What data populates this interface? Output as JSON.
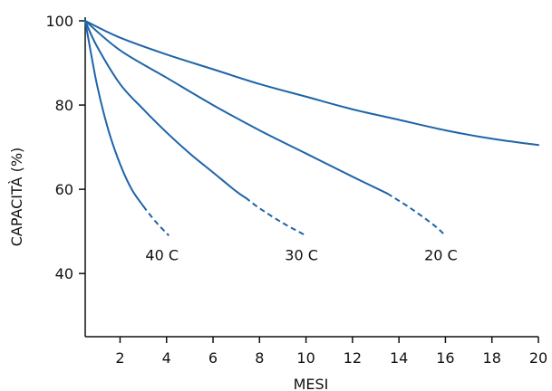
{
  "chart_data": {
    "type": "line",
    "xlabel": "MESI",
    "ylabel": "CAPACITÀ (%)",
    "xlim": [
      0.5,
      20
    ],
    "ylim": [
      25,
      100
    ],
    "xticks": [
      2,
      4,
      6,
      8,
      10,
      12,
      14,
      16,
      18,
      20
    ],
    "yticks": [
      40,
      60,
      80,
      100
    ],
    "grid": false,
    "line_color": "#1f64a8",
    "series": [
      {
        "name": "40 C",
        "solid": [
          [
            0.5,
            100
          ],
          [
            1.0,
            85
          ],
          [
            1.5,
            74
          ],
          [
            2.0,
            66
          ],
          [
            2.5,
            60
          ],
          [
            3.0,
            56
          ]
        ],
        "dashed": [
          [
            3.0,
            56
          ],
          [
            3.5,
            52.5
          ],
          [
            4.1,
            49
          ]
        ]
      },
      {
        "name": "30 C",
        "solid": [
          [
            0.5,
            100
          ],
          [
            1.0,
            94
          ],
          [
            2.0,
            85
          ],
          [
            3.0,
            79
          ],
          [
            4.0,
            73.5
          ],
          [
            5.0,
            68.5
          ],
          [
            6.0,
            64
          ],
          [
            7.0,
            59.5
          ],
          [
            7.4,
            58
          ]
        ],
        "dashed": [
          [
            7.4,
            58
          ],
          [
            8.0,
            55.5
          ],
          [
            9.0,
            52
          ],
          [
            10.0,
            49
          ]
        ]
      },
      {
        "name": "20 C",
        "solid": [
          [
            0.5,
            100
          ],
          [
            2.0,
            93
          ],
          [
            4.0,
            86.5
          ],
          [
            6.0,
            80
          ],
          [
            8.0,
            74
          ],
          [
            10.0,
            68.5
          ],
          [
            12.0,
            63
          ],
          [
            13.5,
            59
          ]
        ],
        "dashed": [
          [
            13.5,
            59
          ],
          [
            14.5,
            55.5
          ],
          [
            15.5,
            51.5
          ],
          [
            16.0,
            49
          ]
        ]
      },
      {
        "name": "",
        "solid": [
          [
            0.5,
            100
          ],
          [
            2.0,
            96
          ],
          [
            4.0,
            92
          ],
          [
            6.0,
            88.5
          ],
          [
            8.0,
            85
          ],
          [
            10.0,
            82
          ],
          [
            12.0,
            79
          ],
          [
            14.0,
            76.5
          ],
          [
            16.0,
            74
          ],
          [
            18.0,
            72
          ],
          [
            20.0,
            70.5
          ]
        ],
        "dashed": []
      }
    ],
    "labels": [
      {
        "text": "40 C",
        "x": 4.0,
        "y": 44.5
      },
      {
        "text": "30 C",
        "x": 10.0,
        "y": 44.5
      },
      {
        "text": "20 C",
        "x": 16.0,
        "y": 44.5
      }
    ]
  }
}
